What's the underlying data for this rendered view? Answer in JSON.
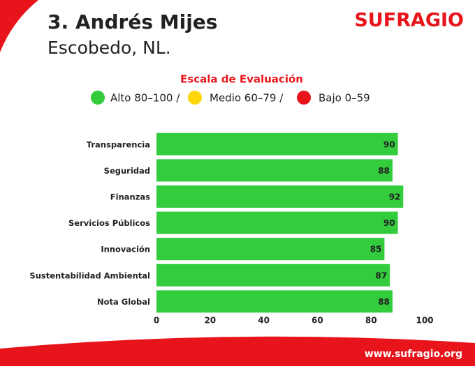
{
  "chart_data": {
    "type": "hbar",
    "title": "3. Andrés Mijes",
    "subtitle": "Escobedo, NL.",
    "brand": "SUFRAGIO",
    "footer": "www.sufragio.org",
    "legend": {
      "title": "Escala de Evaluación",
      "items": [
        {
          "label": "Alto 80–100 /",
          "color": "#33cc3d"
        },
        {
          "label": "Medio 60–79 /",
          "color": "#ffd60a"
        },
        {
          "label": "Bajo 0–59",
          "color": "#e8141b"
        }
      ]
    },
    "categories": [
      "Transparencia",
      "Seguridad",
      "Finanzas",
      "Servicios Públicos",
      "Innovación",
      "Sustentabilidad Ambiental",
      "Nota Global"
    ],
    "values": [
      90,
      88,
      92,
      90,
      85,
      87,
      88
    ],
    "color": "#33cc3d",
    "xlim": [
      0,
      100
    ],
    "xticks": [
      0,
      20,
      40,
      60,
      80,
      100
    ],
    "grid": false
  }
}
